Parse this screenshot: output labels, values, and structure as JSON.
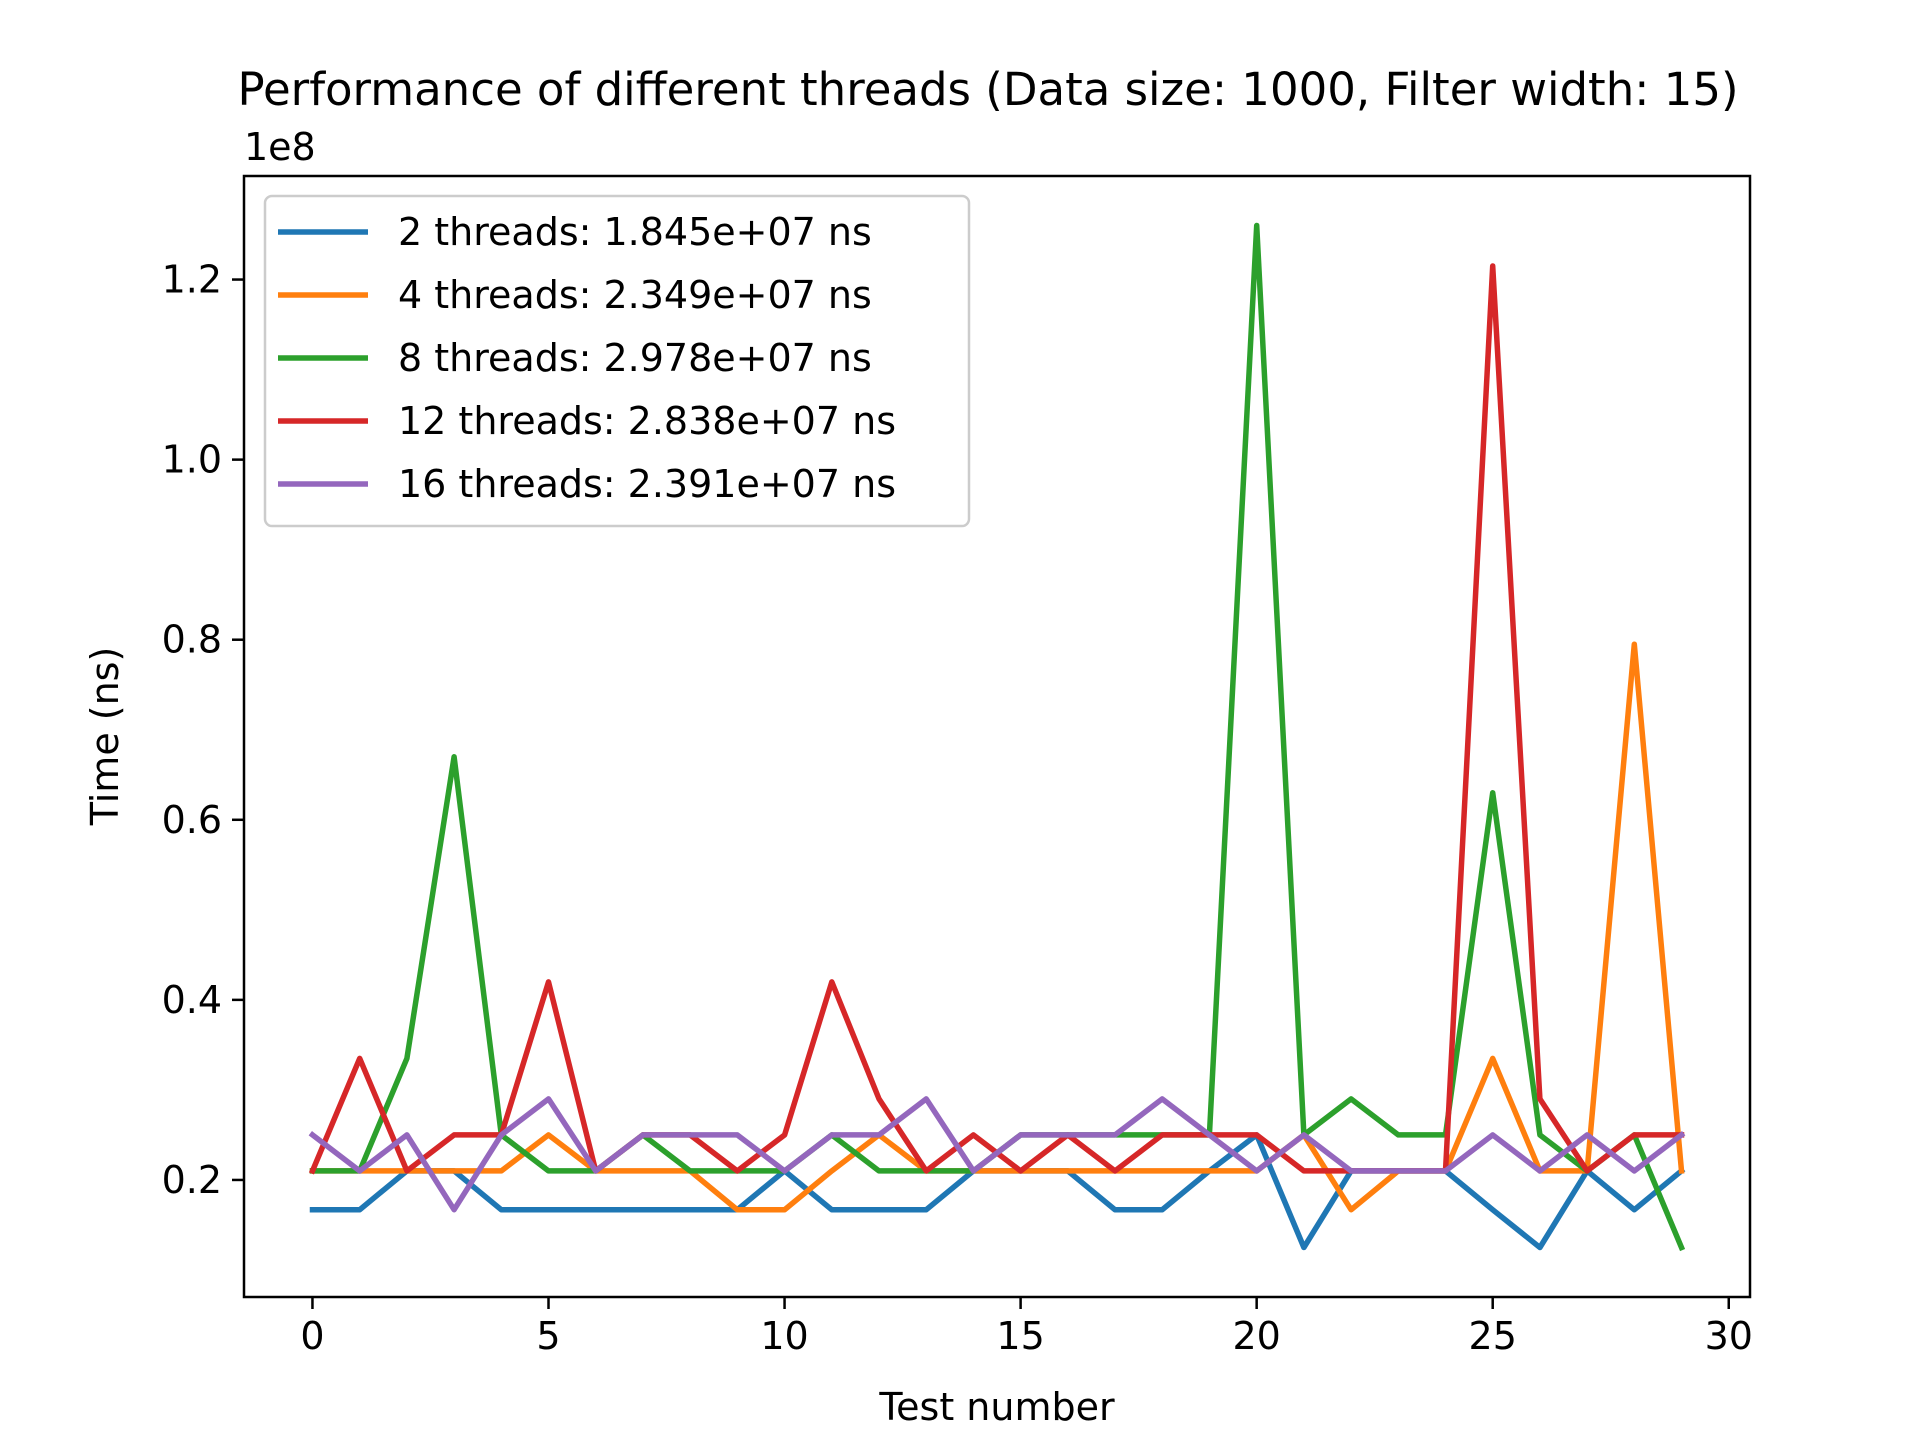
{
  "chart_data": {
    "type": "line",
    "title": "Performance of different threads (Data size: 1000, Filter width: 15)",
    "xlabel": "Test number",
    "ylabel": "Time (ns)",
    "y_offset_label": "1e8",
    "xlim": [
      -1.45,
      30.45
    ],
    "ylim": [
      0.07,
      1.315
    ],
    "x_ticks": [
      0,
      5,
      10,
      15,
      20,
      25,
      30
    ],
    "x_tick_labels": [
      "0",
      "5",
      "10",
      "15",
      "20",
      "25",
      "30"
    ],
    "y_ticks": [
      0.2,
      0.4,
      0.6,
      0.8,
      1.0,
      1.2
    ],
    "y_tick_labels": [
      "0.2",
      "0.4",
      "0.6",
      "0.8",
      "1.0",
      "1.2"
    ],
    "grid": false,
    "legend_position": "upper-left",
    "x": [
      0,
      1,
      2,
      3,
      4,
      5,
      6,
      7,
      8,
      9,
      10,
      11,
      12,
      13,
      14,
      15,
      16,
      17,
      18,
      19,
      20,
      21,
      22,
      23,
      24,
      25,
      26,
      27,
      28,
      29
    ],
    "series": [
      {
        "name": "2 threads: 1.845e+07 ns",
        "color": "#1f77b4",
        "values": [
          0.167,
          0.167,
          0.21,
          0.21,
          0.167,
          0.167,
          0.167,
          0.167,
          0.167,
          0.167,
          0.21,
          0.167,
          0.167,
          0.167,
          0.21,
          0.21,
          0.21,
          0.167,
          0.167,
          0.21,
          0.25,
          0.125,
          0.21,
          0.21,
          0.21,
          0.167,
          0.125,
          0.21,
          0.167,
          0.21
        ]
      },
      {
        "name": "4 threads: 2.349e+07 ns",
        "color": "#ff7f0e",
        "values": [
          0.21,
          0.21,
          0.21,
          0.21,
          0.21,
          0.25,
          0.21,
          0.21,
          0.21,
          0.167,
          0.167,
          0.21,
          0.25,
          0.21,
          0.21,
          0.21,
          0.21,
          0.21,
          0.21,
          0.21,
          0.21,
          0.25,
          0.167,
          0.21,
          0.21,
          0.335,
          0.21,
          0.21,
          0.795,
          0.21
        ]
      },
      {
        "name": "8 threads: 2.978e+07 ns",
        "color": "#2ca02c",
        "values": [
          0.21,
          0.21,
          0.335,
          0.67,
          0.25,
          0.21,
          0.21,
          0.25,
          0.21,
          0.21,
          0.21,
          0.25,
          0.21,
          0.21,
          0.21,
          0.25,
          0.25,
          0.25,
          0.25,
          0.25,
          1.26,
          0.25,
          0.29,
          0.25,
          0.25,
          0.63,
          0.25,
          0.21,
          0.25,
          0.125
        ]
      },
      {
        "name": "12 threads: 2.838e+07 ns",
        "color": "#d62728",
        "values": [
          0.21,
          0.335,
          0.21,
          0.25,
          0.25,
          0.42,
          0.21,
          0.25,
          0.25,
          0.21,
          0.25,
          0.42,
          0.29,
          0.21,
          0.25,
          0.21,
          0.25,
          0.21,
          0.25,
          0.25,
          0.25,
          0.21,
          0.21,
          0.21,
          0.21,
          1.215,
          0.29,
          0.21,
          0.25,
          0.25
        ]
      },
      {
        "name": "16 threads: 2.391e+07 ns",
        "color": "#9467bd",
        "values": [
          0.25,
          0.21,
          0.25,
          0.167,
          0.25,
          0.29,
          0.21,
          0.25,
          0.25,
          0.25,
          0.21,
          0.25,
          0.25,
          0.29,
          0.21,
          0.25,
          0.25,
          0.25,
          0.29,
          0.25,
          0.21,
          0.25,
          0.21,
          0.21,
          0.21,
          0.25,
          0.21,
          0.25,
          0.21,
          0.25
        ]
      }
    ]
  }
}
